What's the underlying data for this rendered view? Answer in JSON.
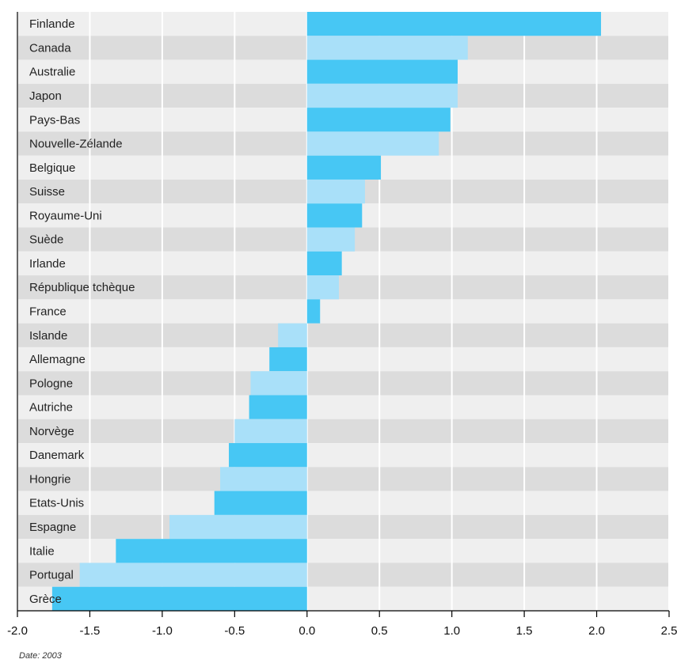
{
  "chart_data": {
    "type": "bar",
    "orientation": "horizontal",
    "categories": [
      "Finlande",
      "Canada",
      "Australie",
      "Japon",
      "Pays-Bas",
      "Nouvelle-Zélande",
      "Belgique",
      "Suisse",
      "Royaume-Uni",
      "Suède",
      "Irlande",
      "République tchèque",
      "France",
      "Islande",
      "Allemagne",
      "Pologne",
      "Autriche",
      "Norvège",
      "Danemark",
      "Hongrie",
      "Etats-Unis",
      "Espagne",
      "Italie",
      "Portugal",
      "Grèce"
    ],
    "values": [
      2.03,
      1.11,
      1.04,
      1.04,
      0.99,
      0.91,
      0.51,
      0.4,
      0.38,
      0.33,
      0.24,
      0.22,
      0.09,
      -0.2,
      -0.26,
      -0.39,
      -0.4,
      -0.5,
      -0.54,
      -0.6,
      -0.64,
      -0.95,
      -1.32,
      -1.57,
      -1.76
    ],
    "xlim": [
      -2.0,
      2.5
    ],
    "xticks": [
      "-2.0",
      "-1.5",
      "-1.0",
      "-0.5",
      "0.0",
      "0.5",
      "1.0",
      "1.5",
      "2.0",
      "2.5"
    ],
    "xtick_values": [
      -2.0,
      -1.5,
      -1.0,
      -0.5,
      0.0,
      0.5,
      1.0,
      1.5,
      2.0,
      2.5
    ],
    "grid": true,
    "title": "",
    "xlabel": "",
    "ylabel": "",
    "bar_colors": [
      "#47c7f4",
      "#a9e0f9"
    ],
    "band_colors": [
      "#efefef",
      "#dcdcdc"
    ],
    "note": "Date: 2003"
  }
}
